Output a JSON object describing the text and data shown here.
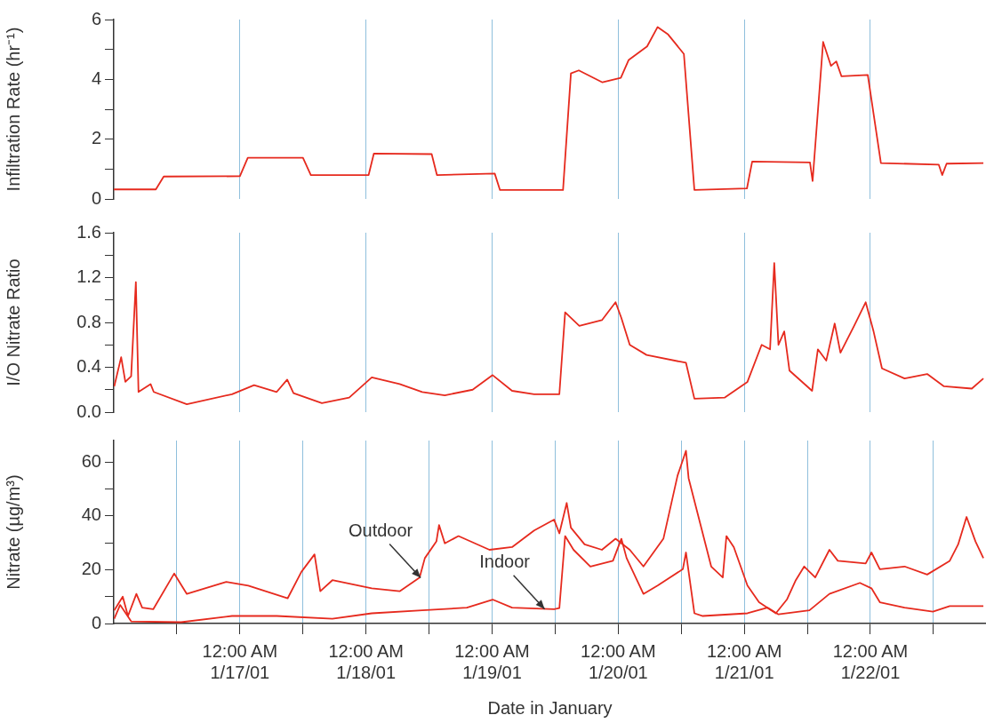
{
  "chart_data": [
    {
      "type": "line",
      "ylabel": "Infiltration Rate (hr⁻¹)",
      "grid": "x",
      "tick_labels": "y",
      "xlim": [
        "--01-16T00:00",
        "--01-22T22:00"
      ],
      "xticks": [
        {
          "value": "--01-17T00:00",
          "label": null
        },
        {
          "value": "--01-18T00:00",
          "label": null
        },
        {
          "value": "--01-19T00:00",
          "label": null
        },
        {
          "value": "--01-20T00:00",
          "label": null
        },
        {
          "value": "--01-21T00:00",
          "label": null
        },
        {
          "value": "--01-22T00:00",
          "label": null
        }
      ],
      "ylim": [
        0,
        6
      ],
      "yticks": [
        0,
        {
          "value": 1,
          "label": null
        },
        2,
        {
          "value": 3,
          "label": null
        },
        4,
        {
          "value": 5,
          "label": null
        },
        6
      ],
      "series": [
        {
          "color": "#e62a1e",
          "x": [
            "--01-16T00:00",
            "--01-16T08:00",
            "--01-16T09:30",
            "--01-17T00:00",
            "--01-17T01:30",
            "--01-17T12:00",
            "--01-17T13:30",
            "--01-18T00:30",
            "--01-18T01:30",
            "--01-18T12:30",
            "--01-18T13:30",
            "--01-19T00:30",
            "--01-19T01:30",
            "--01-19T13:30",
            "--01-19T15:00",
            "--01-19T16:30",
            "--01-19T21:00",
            "--01-20T00:30",
            "--01-20T02:00",
            "--01-20T05:30",
            "--01-20T07:30",
            "--01-20T09:30",
            "--01-20T12:30",
            "--01-20T14:30",
            "--01-21T00:30",
            "--01-21T01:30",
            "--01-21T12:30",
            "--01-21T13:00",
            "--01-21T15:00",
            "--01-21T16:30",
            "--01-21T17:30",
            "--01-21T18:30",
            "--01-21T23:30",
            "--01-22T02:00",
            "--01-22T13:00",
            "--01-22T13:40",
            "--01-22T14:30",
            "--01-22T21:30"
          ],
          "values": [
            0.32,
            0.32,
            0.75,
            0.76,
            1.38,
            1.38,
            0.8,
            0.8,
            1.52,
            1.5,
            0.8,
            0.85,
            0.3,
            0.3,
            4.2,
            4.3,
            3.9,
            4.05,
            4.65,
            5.1,
            5.75,
            5.5,
            4.85,
            0.3,
            0.35,
            1.25,
            1.22,
            0.6,
            5.25,
            4.45,
            4.6,
            4.1,
            4.15,
            1.2,
            1.15,
            0.8,
            1.18,
            1.2
          ]
        }
      ]
    },
    {
      "type": "line",
      "ylabel": "I/O Nitrate Ratio",
      "grid": "x",
      "tick_labels": "y",
      "xlim": [
        "--01-16T00:00",
        "--01-22T22:00"
      ],
      "xticks": [
        {
          "value": "--01-17T00:00",
          "label": null
        },
        {
          "value": "--01-18T00:00",
          "label": null
        },
        {
          "value": "--01-19T00:00",
          "label": null
        },
        {
          "value": "--01-20T00:00",
          "label": null
        },
        {
          "value": "--01-21T00:00",
          "label": null
        },
        {
          "value": "--01-22T00:00",
          "label": null
        }
      ],
      "ylim": [
        0,
        1.6
      ],
      "yticks": [
        {
          "value": 0,
          "label": "0.0"
        },
        {
          "value": 0.2,
          "label": null
        },
        {
          "value": 0.4,
          "label": "0.4"
        },
        {
          "value": 0.6,
          "label": null
        },
        {
          "value": 0.8,
          "label": "0.8"
        },
        {
          "value": 1,
          "label": null
        },
        {
          "value": 1.2,
          "label": "1.2"
        },
        {
          "value": 1.4,
          "label": null
        },
        {
          "value": 1.6,
          "label": "1.6"
        }
      ],
      "series": [
        {
          "color": "#e62a1e",
          "x": [
            "--01-16T00:05",
            "--01-16T01:24",
            "--01-16T02:12",
            "--01-16T03:18",
            "--01-16T04:12",
            "--01-16T04:42",
            "--01-16T07:00",
            "--01-16T07:36",
            "--01-16T13:54",
            "--01-16T22:30",
            "--01-17T02:42",
            "--01-17T07:00",
            "--01-17T09:00",
            "--01-17T10:12",
            "--01-17T15:36",
            "--01-17T20:48",
            "--01-18T01:06",
            "--01-18T06:24",
            "--01-18T10:42",
            "--01-18T15:00",
            "--01-18T20:18",
            "--01-19T00:06",
            "--01-19T03:48",
            "--01-19T08:00",
            "--01-19T12:48",
            "--01-19T13:54",
            "--01-19T16:36",
            "--01-19T20:54",
            "--01-19T23:30",
            "--01-20T00:36",
            "--01-20T02:12",
            "--01-20T05:24",
            "--01-20T11:48",
            "--01-20T12:54",
            "--01-20T14:30",
            "--01-20T20:18",
            "--01-21T00:36",
            "--01-21T03:18",
            "--01-21T04:54",
            "--01-21T05:42",
            "--01-21T06:30",
            "--01-21T07:36",
            "--01-21T08:36",
            "--01-21T12:54",
            "--01-21T14:00",
            "--01-21T15:36",
            "--01-21T17:12",
            "--01-21T18:18",
            "--01-21T20:54",
            "--01-21T23:06",
            "--01-22T00:36",
            "--01-22T02:12",
            "--01-22T06:30",
            "--01-22T10:48",
            "--01-22T14:00",
            "--01-22T19:18",
            "--01-22T21:30"
          ],
          "values": [
            0.23,
            0.49,
            0.27,
            0.32,
            1.16,
            0.18,
            0.25,
            0.18,
            0.07,
            0.16,
            0.24,
            0.18,
            0.29,
            0.17,
            0.08,
            0.13,
            0.31,
            0.25,
            0.18,
            0.15,
            0.2,
            0.33,
            0.19,
            0.16,
            0.16,
            0.89,
            0.77,
            0.82,
            0.98,
            0.84,
            0.6,
            0.51,
            0.45,
            0.44,
            0.12,
            0.13,
            0.27,
            0.6,
            0.56,
            1.33,
            0.6,
            0.72,
            0.37,
            0.19,
            0.56,
            0.46,
            0.79,
            0.53,
            0.77,
            0.98,
            0.72,
            0.39,
            0.3,
            0.34,
            0.23,
            0.21,
            0.3
          ]
        }
      ]
    },
    {
      "type": "line",
      "ylabel": "Nitrate (µg/m³)",
      "xlabel": "Date in January",
      "grid": "x",
      "xlim": [
        "--01-16T00:00",
        "--01-22T22:00"
      ],
      "xticks": [
        {
          "value": "--01-16T12:00",
          "label": null
        },
        {
          "value": "--01-17T00:00",
          "label": "12:00 AM\n1/17/01"
        },
        {
          "value": "--01-17T12:00",
          "label": null
        },
        {
          "value": "--01-18T00:00",
          "label": "12:00 AM\n1/18/01"
        },
        {
          "value": "--01-18T12:00",
          "label": null
        },
        {
          "value": "--01-19T00:00",
          "label": "12:00 AM\n1/19/01"
        },
        {
          "value": "--01-19T12:00",
          "label": null
        },
        {
          "value": "--01-20T00:00",
          "label": "12:00 AM\n1/20/01"
        },
        {
          "value": "--01-20T12:00",
          "label": null
        },
        {
          "value": "--01-21T00:00",
          "label": "12:00 AM\n1/21/01"
        },
        {
          "value": "--01-21T12:00",
          "label": null
        },
        {
          "value": "--01-22T00:00",
          "label": "12:00 AM\n1/22/01"
        },
        {
          "value": "--01-22T12:00",
          "label": null
        }
      ],
      "ylim": [
        0,
        68
      ],
      "yticks": [
        0,
        {
          "value": 10,
          "label": null
        },
        20,
        {
          "value": 30,
          "label": null
        },
        40,
        {
          "value": 50,
          "label": null
        },
        60
      ],
      "annotations": [
        {
          "text": "Outdoor",
          "x": "--01-18T10:24",
          "y": 17
        },
        {
          "text": "Indoor",
          "x": "--01-19T10:00",
          "y": 5.4
        }
      ],
      "series": [
        {
          "color": "#e62a1e",
          "x": [
            "--01-16T00:05",
            "--01-16T01:42",
            "--01-16T02:42",
            "--01-16T04:18",
            "--01-16T05:24",
            "--01-16T07:30",
            "--01-16T11:30",
            "--01-16T13:54",
            "--01-16T21:24",
            "--01-17T01:36",
            "--01-17T09:06",
            "--01-17T11:42",
            "--01-17T14:12",
            "--01-17T15:18",
            "--01-17T17:36",
            "--01-18T01:06",
            "--01-18T06:24",
            "--01-18T10:12",
            "--01-18T11:12",
            "--01-18T13:24",
            "--01-18T13:54",
            "--01-18T15:00",
            "--01-18T17:36",
            "--01-18T23:30",
            "--01-19T03:48",
            "--01-19T08:00",
            "--01-19T11:48",
            "--01-19T12:48",
            "--01-19T14:12",
            "--01-19T15:00",
            "--01-19T17:36",
            "--01-19T20:54",
            "--01-19T23:30",
            "--01-20T02:12",
            "--01-20T04:48",
            "--01-20T08:36",
            "--01-20T11:18",
            "--01-20T12:54",
            "--01-20T13:24",
            "--01-20T17:42",
            "--01-20T19:54",
            "--01-20T20:36",
            "--01-20T22:00",
            "--01-21T00:36",
            "--01-21T02:48",
            "--01-21T06:00",
            "--01-21T08:06",
            "--01-21T09:48",
            "--01-21T11:24",
            "--01-21T13:30",
            "--01-21T16:12",
            "--01-21T17:48",
            "--01-21T23:06",
            "--01-22T00:12",
            "--01-22T01:48",
            "--01-22T06:30",
            "--01-22T10:48",
            "--01-22T15:06",
            "--01-22T16:42",
            "--01-22T18:18",
            "--01-22T20:00",
            "--01-22T21:30"
          ],
          "values": [
            4.9,
            10,
            2.8,
            11,
            5.9,
            5.3,
            18.6,
            11,
            15.5,
            14.1,
            9.4,
            19.2,
            25.7,
            12,
            16.1,
            13.1,
            12,
            17.1,
            24.3,
            30.5,
            36.6,
            29.8,
            32.5,
            27.4,
            28.4,
            34.6,
            38.6,
            33.5,
            44.8,
            35.6,
            29.4,
            27.4,
            31.5,
            27.4,
            21.2,
            31.5,
            55,
            64.2,
            54,
            21.2,
            17.1,
            32.5,
            28.4,
            14.1,
            7.9,
            3.8,
            8.9,
            16.1,
            21.2,
            17.1,
            27.4,
            23.3,
            22.3,
            26.4,
            20.2,
            21.2,
            18.2,
            23.3,
            29.4,
            39.6,
            30.5,
            24.3
          ]
        },
        {
          "color": "#e62a1e",
          "x": [
            "--01-16T00:05",
            "--01-16T01:12",
            "--01-16T03:18",
            "--01-16T12:48",
            "--01-16T22:30",
            "--01-17T07:00",
            "--01-17T17:36",
            "--01-18T01:06",
            "--01-18T10:42",
            "--01-18T19:12",
            "--01-19T00:06",
            "--01-19T03:48",
            "--01-19T11:48",
            "--01-19T12:48",
            "--01-19T13:54",
            "--01-19T15:30",
            "--01-19T18:42",
            "--01-19T23:00",
            "--01-20T00:36",
            "--01-20T01:36",
            "--01-20T04:48",
            "--01-20T07:30",
            "--01-20T12:18",
            "--01-20T12:54",
            "--01-20T14:30",
            "--01-20T16:06",
            "--01-21T00:36",
            "--01-21T04:24",
            "--01-21T06:30",
            "--01-21T12:24",
            "--01-21T16:12",
            "--01-21T22:00",
            "--01-22T00:12",
            "--01-22T01:48",
            "--01-22T06:30",
            "--01-22T11:54",
            "--01-22T15:06",
            "--01-22T21:30"
          ],
          "values": [
            1.8,
            6.9,
            0.8,
            0.5,
            2.8,
            2.8,
            1.8,
            3.8,
            4.9,
            5.9,
            8.9,
            5.9,
            5.3,
            5.7,
            32.5,
            27.4,
            21.2,
            23.3,
            31.5,
            24.3,
            11,
            14.1,
            20.2,
            26.4,
            3.8,
            2.8,
            3.8,
            5.9,
            3.4,
            4.9,
            11,
            15.1,
            13.1,
            7.9,
            5.9,
            4.4,
            6.5,
            6.5
          ]
        }
      ]
    }
  ]
}
